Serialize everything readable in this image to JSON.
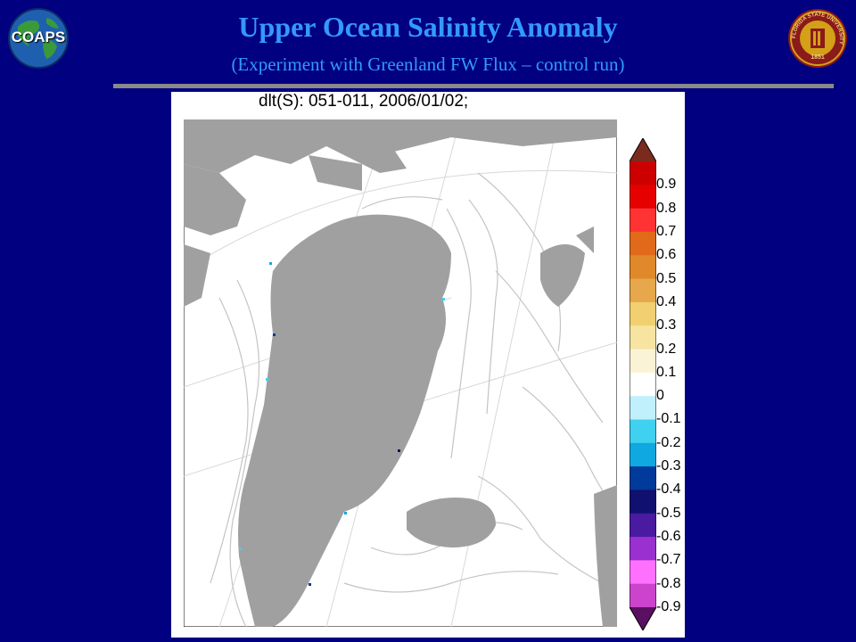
{
  "header": {
    "title": "Upper Ocean Salinity Anomaly",
    "subtitle": "(Experiment with Greenland FW Flux – control run)",
    "left_logo": {
      "text": "COAPS",
      "icon": "globe-logo-icon"
    },
    "right_logo": {
      "icon": "university-seal-icon",
      "ring_text": "FLORIDA STATE UNIVERSITY",
      "year": "1851"
    }
  },
  "plot": {
    "title": "dlt(S): 051-011, 2006/01/02;",
    "colorbar": {
      "ticks": [
        "0.9",
        "0.8",
        "0.7",
        "0.6",
        "0.5",
        "0.4",
        "0.3",
        "0.2",
        "0.1",
        "0",
        "-0.1",
        "-0.2",
        "-0.3",
        "-0.4",
        "-0.5",
        "-0.6",
        "-0.7",
        "-0.8",
        "-0.9"
      ],
      "colors": [
        "#7b2a1e",
        "#cc0000",
        "#e60000",
        "#ff3333",
        "#e06a1a",
        "#e0892a",
        "#e6a84a",
        "#f0d070",
        "#f6e4a0",
        "#fbf3d6",
        "#ffffff",
        "#c0f0fc",
        "#40d0f0",
        "#10a8e0",
        "#003a9a",
        "#101070",
        "#4a1aa0",
        "#9a30d0",
        "#ff70ff",
        "#cc44cc",
        "#5a1060"
      ]
    },
    "colors": {
      "land": "#a0a0a0",
      "contour": "#c4c4c4",
      "grid": "#d8d8d8"
    }
  }
}
